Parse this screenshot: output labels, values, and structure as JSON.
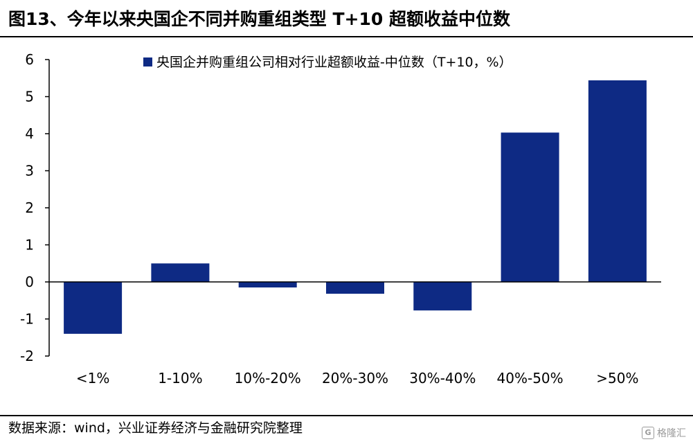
{
  "header": {
    "title": "图13、今年以来央国企不同并购重组类型 T+10 超额收益中位数"
  },
  "footer": {
    "source": "数据来源：wind，兴业证券经济与金融研究院整理",
    "watermark": "格隆汇"
  },
  "chart_data": {
    "type": "bar",
    "title": "图13、今年以来央国企不同并购重组类型 T+10 超额收益中位数",
    "categories": [
      "<1%",
      "1-10%",
      "10%-20%",
      "20%-30%",
      "30%-40%",
      "40%-50%",
      ">50%"
    ],
    "series": [
      {
        "name": "央国企并购重组公司相对行业超额收益-中位数（T+10，%）",
        "values": [
          -1.4,
          0.5,
          -0.15,
          -0.32,
          -0.77,
          4.03,
          5.44
        ],
        "color": "#0e2a84"
      }
    ],
    "ylim": [
      -2,
      6
    ],
    "yticks": [
      -2,
      -1,
      0,
      1,
      2,
      3,
      4,
      5,
      6
    ],
    "grid": false,
    "legend_position": "top"
  }
}
